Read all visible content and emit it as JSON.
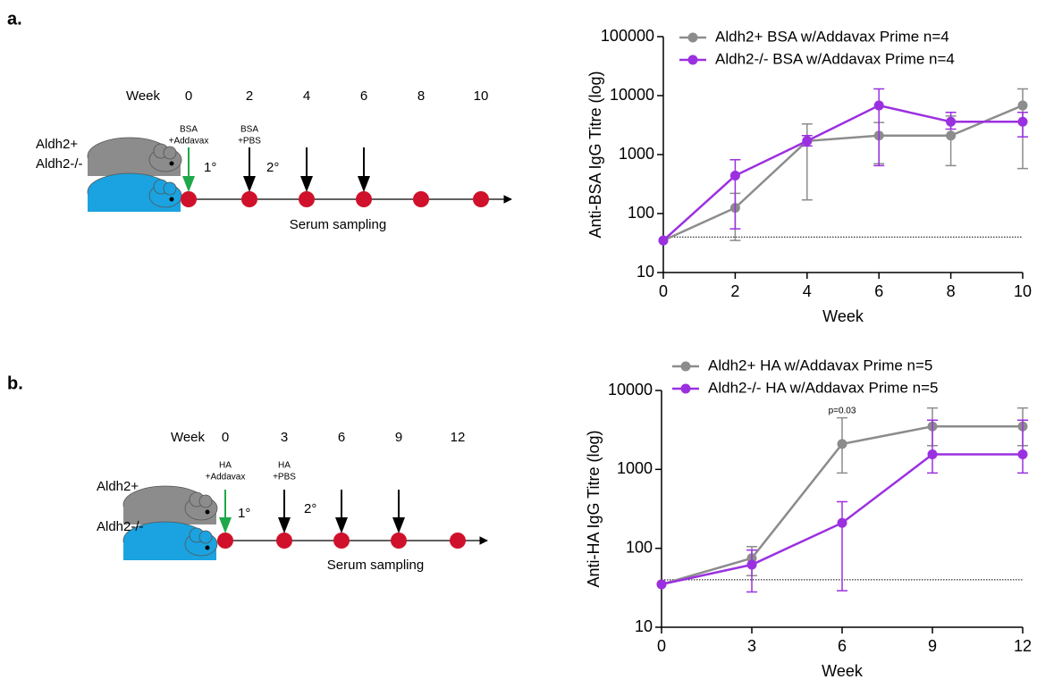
{
  "panels": [
    {
      "label": "a.",
      "schematic": {
        "week_label": "Week",
        "weeks": [
          0,
          2,
          4,
          6,
          8,
          10
        ],
        "prime": [
          "BSA",
          "+Addavax"
        ],
        "boost": [
          "BSA",
          "+PBS"
        ],
        "primary": "1°",
        "secondary": "2°",
        "strains": [
          "Aldh2+",
          "Aldh2-/-"
        ],
        "sampling": "Serum sampling"
      }
    },
    {
      "label": "b.",
      "schematic": {
        "week_label": "Week",
        "weeks": [
          0,
          3,
          6,
          9,
          12
        ],
        "prime": [
          "HA",
          "+Addavax"
        ],
        "boost": [
          "HA",
          "+PBS"
        ],
        "primary": "1°",
        "secondary": "2°",
        "strains": [
          "Aldh2+",
          "Aldh2-/-"
        ],
        "sampling": "Serum sampling"
      }
    }
  ],
  "chart_data": [
    {
      "type": "line",
      "y_label": "Anti-BSA IgG Titre (log)",
      "x_label": "Week",
      "log_y": true,
      "x": [
        0,
        2,
        4,
        6,
        8,
        10
      ],
      "xlim": [
        0,
        10
      ],
      "xticks": [
        0,
        2,
        4,
        6,
        8,
        10
      ],
      "ylim": [
        10,
        100000
      ],
      "yticks": [
        10,
        100,
        1000,
        10000,
        100000
      ],
      "threshold": 40,
      "series": [
        {
          "name": "Aldh2+ BSA w/Addavax Prime n=4",
          "color": "#8c8c8c",
          "values": [
            35,
            125,
            1700,
            2100,
            2100,
            6800
          ],
          "lower": [
            null,
            35,
            170,
            700,
            650,
            580
          ],
          "upper": [
            null,
            220,
            3300,
            3500,
            4500,
            13000
          ]
        },
        {
          "name": "Aldh2-/- BSA w/Addavax Prime n=4",
          "color": "#9b30e0",
          "values": [
            35,
            440,
            1700,
            6800,
            3600,
            3600
          ],
          "lower": [
            null,
            55,
            1400,
            650,
            2700,
            2000
          ],
          "upper": [
            null,
            820,
            2100,
            13000,
            5200,
            5200
          ]
        }
      ]
    },
    {
      "type": "line",
      "y_label": "Anti-HA IgG Titre (log)",
      "x_label": "Week",
      "log_y": true,
      "x": [
        0,
        3,
        6,
        9,
        12
      ],
      "xlim": [
        0,
        12
      ],
      "xticks": [
        0,
        3,
        6,
        9,
        12
      ],
      "ylim": [
        10,
        10000
      ],
      "yticks": [
        10,
        100,
        1000,
        10000
      ],
      "threshold": 40,
      "annotation": {
        "text": "p=0.03",
        "x": 6,
        "y": 5500
      },
      "series": [
        {
          "name": "Aldh2+ HA w/Addavax Prime n=5",
          "color": "#8c8c8c",
          "values": [
            35,
            75,
            2100,
            3500,
            3500
          ],
          "lower": [
            null,
            45,
            900,
            2000,
            2000
          ],
          "upper": [
            null,
            105,
            4500,
            6000,
            6000
          ]
        },
        {
          "name": "Aldh2-/- HA w/Addavax Prime n=5",
          "color": "#9b30e0",
          "values": [
            35,
            62,
            210,
            1550,
            1550
          ],
          "lower": [
            null,
            28,
            29,
            900,
            900
          ],
          "upper": [
            null,
            95,
            390,
            4200,
            4200
          ]
        }
      ]
    }
  ]
}
